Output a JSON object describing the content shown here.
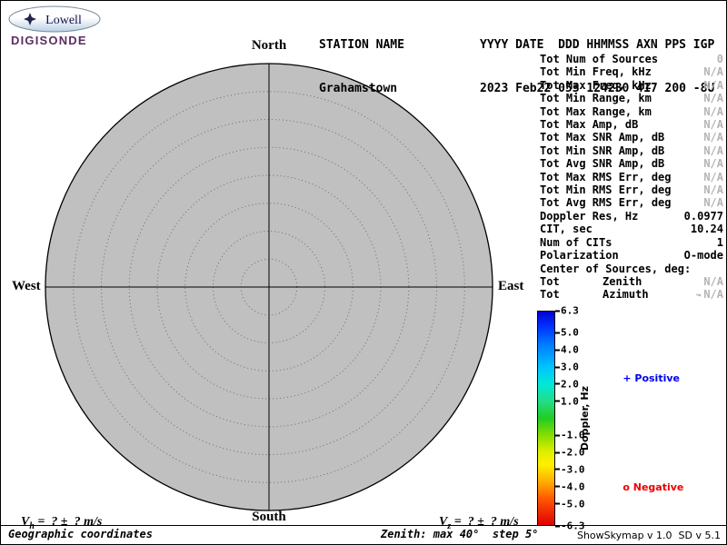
{
  "logo": {
    "brand": "Lowell",
    "product": "DIGISONDE"
  },
  "header": {
    "line1_left": "STATION NAME",
    "line1_right": "YYYY DATE  DDD HHMMSS AXN PPS IGP",
    "line2_left": "Grahamstown",
    "line2_right": "2023 Feb22 053 124230 417 200 -8U"
  },
  "compass": {
    "north": "North",
    "south": "South",
    "west": "West",
    "east": "East"
  },
  "stats": {
    "rows": [
      {
        "label": "Tot Num of Sources",
        "value": "0",
        "muted": true
      },
      {
        "label": "Tot Min Freq, kHz",
        "value": "N/A",
        "muted": true
      },
      {
        "label": "Tot Max Freq, kHz",
        "value": "N/A",
        "muted": true
      },
      {
        "label": "Tot Min Range, km",
        "value": "N/A",
        "muted": true
      },
      {
        "label": "Tot Max Range, km",
        "value": "N/A",
        "muted": true
      },
      {
        "label": "Tot Max Amp, dB",
        "value": "N/A",
        "muted": true
      },
      {
        "label": "Tot Max SNR Amp, dB",
        "value": "N/A",
        "muted": true
      },
      {
        "label": "Tot Min SNR Amp, dB",
        "value": "N/A",
        "muted": true
      },
      {
        "label": "Tot Avg SNR Amp, dB",
        "value": "N/A",
        "muted": true
      },
      {
        "label": "Tot Max RMS Err, deg",
        "value": "N/A",
        "muted": true
      },
      {
        "label": "Tot Min RMS Err, deg",
        "value": "N/A",
        "muted": true
      },
      {
        "label": "Tot Avg RMS Err, deg",
        "value": "N/A",
        "muted": true
      },
      {
        "label": "Doppler Res, Hz",
        "value": "0.0977",
        "muted": false
      },
      {
        "label": "CIT, sec",
        "value": "10.24",
        "muted": false
      },
      {
        "label": "Num of CITs",
        "value": "1",
        "muted": false
      },
      {
        "label": "Polarization",
        "value": "O-mode",
        "muted": false
      },
      {
        "label": "Center of Sources, deg:",
        "value": "",
        "muted": false
      },
      {
        "label": "Tot",
        "mid": "Zenith",
        "value": "N/A",
        "muted": true
      },
      {
        "label": "Tot",
        "mid": "Azimuth",
        "value": "N/A",
        "muted": true,
        "symbol": "↝"
      }
    ]
  },
  "colorbar": {
    "title": "Doppler, Hz",
    "range": [
      -6.3,
      6.3
    ],
    "tick_values": [
      6.3,
      5,
      4,
      3,
      2,
      1,
      -1,
      -2,
      -3,
      -4,
      -5,
      -6.3
    ],
    "ticks": [
      "6.3",
      "5.0",
      "4.0",
      "3.0",
      "2.0",
      "1.0",
      "-1.0",
      "-2.0",
      "-3.0",
      "-4.0",
      "-5.0",
      "-6.3"
    ],
    "gradient": [
      "#0000d2 0%",
      "#0032ff 7%",
      "#0080ff 16%",
      "#00c3ff 26%",
      "#00e8d8 34%",
      "#22dd88 42%",
      "#22cc22 50%",
      "#88dd00 58%",
      "#e2ee00 66%",
      "#ffee00 72%",
      "#ffaa00 80%",
      "#ff5500 88%",
      "#e00000 100%"
    ],
    "positive": {
      "marker": "+",
      "label": "Positive",
      "color": "#0000ee"
    },
    "negative": {
      "marker": "o",
      "label": "Negative",
      "color": "#ee0000"
    }
  },
  "footer": {
    "vh": {
      "symbol": "V",
      "sub": "h",
      "rest": " =  ? ±  ? m/s"
    },
    "vz": {
      "symbol": "V",
      "sub": "z",
      "rest": " =  ? ±  ? m/s"
    },
    "coords_caption": "Geographic coordinates",
    "zenith_caption": "Zenith: max 40°  step 5°",
    "version_caption": "ShowSkymap v 1.0  SD v 5.1"
  },
  "chart": {
    "type": "polar_skymap",
    "zenith_max_deg": 40,
    "zenith_step_deg": 5,
    "num_sources": 0,
    "sources": [],
    "fill": "#c0c0c0"
  }
}
